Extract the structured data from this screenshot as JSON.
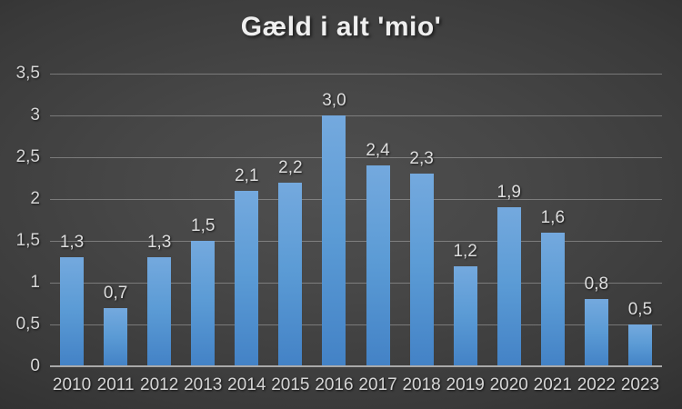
{
  "chart_data": {
    "type": "bar",
    "title": "Gæld i alt 'mio'",
    "categories": [
      "2010",
      "2011",
      "2012",
      "2013",
      "2014",
      "2015",
      "2016",
      "2017",
      "2018",
      "2019",
      "2020",
      "2021",
      "2022",
      "2023"
    ],
    "values": [
      1.3,
      0.7,
      1.3,
      1.5,
      2.1,
      2.2,
      3.0,
      2.4,
      2.3,
      1.2,
      1.9,
      1.6,
      0.8,
      0.5
    ],
    "value_labels": [
      "1,3",
      "0,7",
      "1,3",
      "1,5",
      "2,1",
      "2,2",
      "3,0",
      "2,4",
      "2,3",
      "1,2",
      "1,9",
      "1,6",
      "0,8",
      "0,5"
    ],
    "xlabel": "",
    "ylabel": "",
    "ylim": [
      0,
      3.5
    ],
    "ytick_values": [
      0,
      0.5,
      1,
      1.5,
      2,
      2.5,
      3,
      3.5
    ],
    "ytick_labels": [
      "0",
      "0,5",
      "1",
      "1,5",
      "2",
      "2,5",
      "3",
      "3,5"
    ],
    "grid": true,
    "legend_position": "none",
    "decimal_separator": ",",
    "colors": {
      "bar_top": "#74a9de",
      "bar_mid": "#5b9bd5",
      "bar_bottom": "#4382c6",
      "gridline": "#8f8f8f",
      "axis_line": "#a9a9a9",
      "label_text": "#dedede",
      "title_text": "#efefef",
      "background_center": "#4f4f4f",
      "background_edge": "#232323"
    }
  }
}
